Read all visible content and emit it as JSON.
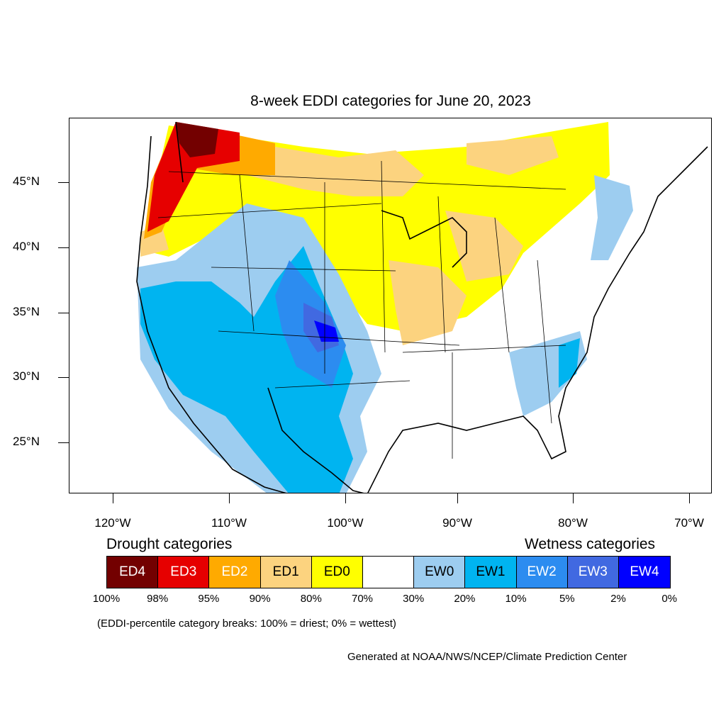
{
  "title": "8-week EDDI categories for June 20, 2023",
  "lat_labels": [
    "45°N",
    "40°N",
    "35°N",
    "30°N",
    "25°N"
  ],
  "lon_labels": [
    "120°W",
    "110°W",
    "100°W",
    "90°W",
    "80°W",
    "70°W"
  ],
  "legend": {
    "drought_heading": "Drought categories",
    "wetness_heading": "Wetness categories",
    "categories": [
      {
        "label": "ED4",
        "color": "#730000"
      },
      {
        "label": "ED3",
        "color": "#e60000"
      },
      {
        "label": "ED2",
        "color": "#ffaa00"
      },
      {
        "label": "ED1",
        "color": "#fcd37f"
      },
      {
        "label": "ED0",
        "color": "#ffff00"
      },
      {
        "label": "",
        "color": "#ffffff"
      },
      {
        "label": "EW0",
        "color": "#9dcdf0"
      },
      {
        "label": "EW1",
        "color": "#00b4f0"
      },
      {
        "label": "EW2",
        "color": "#2c8cf0"
      },
      {
        "label": "EW3",
        "color": "#4169e1"
      },
      {
        "label": "EW4",
        "color": "#0000ff"
      }
    ],
    "percent_breaks": [
      "100%",
      "98%",
      "95%",
      "90%",
      "80%",
      "70%",
      "30%",
      "20%",
      "10%",
      "5%",
      "2%",
      "0%"
    ]
  },
  "note": "(EDDI-percentile category breaks: 100% = driest; 0% = wettest)",
  "credit": "Generated at NOAA/NWS/NCEP/Climate Prediction Center"
}
